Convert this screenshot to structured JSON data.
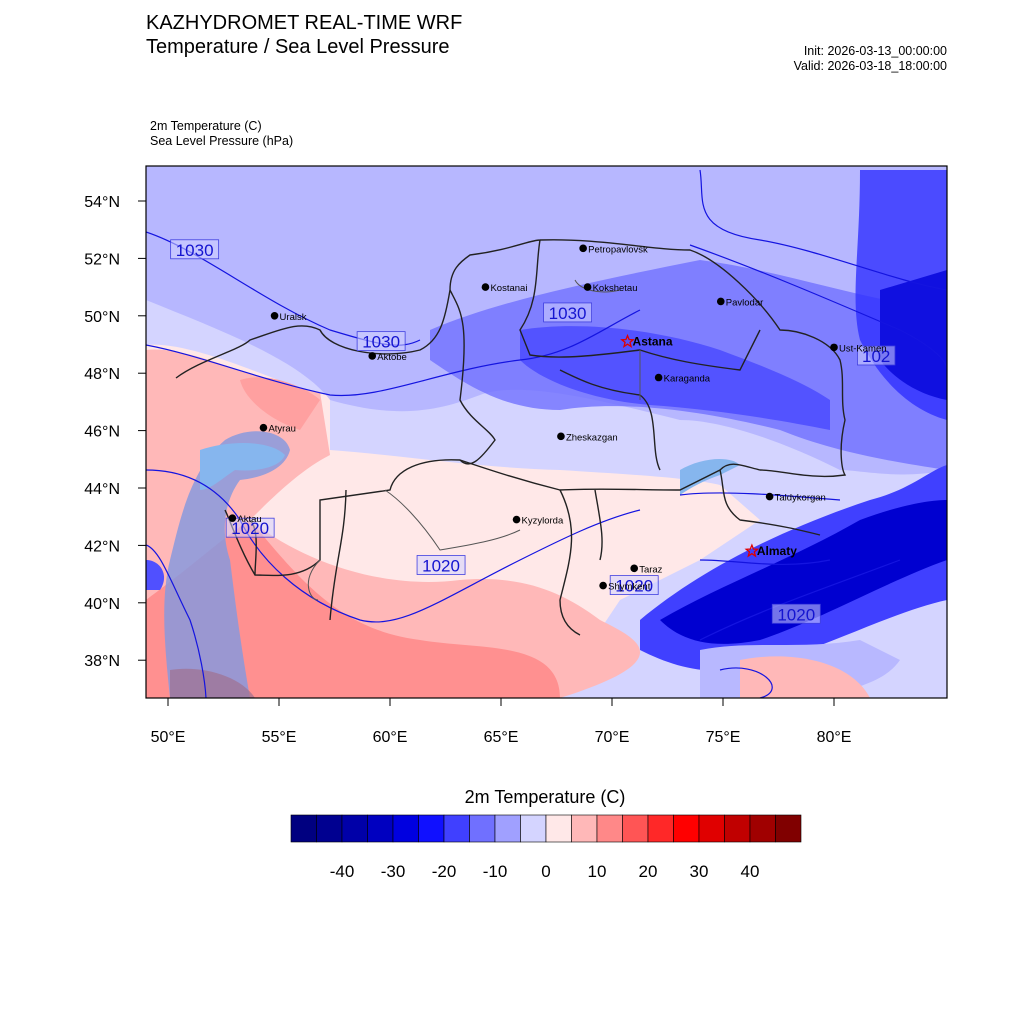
{
  "header": {
    "title": "KAZHYDROMET REAL-TIME WRF",
    "subtitle": "Temperature / Sea Level Pressure",
    "init": "Init: 2026-03-13_00:00:00",
    "valid": "Valid: 2026-03-18_18:00:00",
    "field1": "2m Temperature   (C)",
    "field2": "Sea Level Pressure   (hPa)"
  },
  "map": {
    "lat_labels": [
      "54°N",
      "52°N",
      "50°N",
      "48°N",
      "46°N",
      "44°N",
      "42°N",
      "40°N",
      "38°N"
    ],
    "lon_labels": [
      "50°E",
      "55°E",
      "60°E",
      "65°E",
      "70°E",
      "75°E",
      "80°E"
    ],
    "cities": [
      {
        "name": "Petropavlovsk",
        "lon": 68.7,
        "lat": 52.35,
        "capital": false
      },
      {
        "name": "Kostanai",
        "lon": 64.3,
        "lat": 51.0,
        "capital": false
      },
      {
        "name": "Kokshetau",
        "lon": 68.9,
        "lat": 51.0,
        "capital": false
      },
      {
        "name": "Uralsk",
        "lon": 54.8,
        "lat": 50.0,
        "capital": false
      },
      {
        "name": "Pavlodar",
        "lon": 74.9,
        "lat": 50.5,
        "capital": false
      },
      {
        "name": "Astana",
        "lon": 70.7,
        "lat": 49.1,
        "capital": true
      },
      {
        "name": "Aktobe",
        "lon": 59.2,
        "lat": 48.6,
        "capital": false
      },
      {
        "name": "Ust-Kamen",
        "lon": 80.0,
        "lat": 48.9,
        "capital": false
      },
      {
        "name": "Karaganda",
        "lon": 72.1,
        "lat": 47.85,
        "capital": false
      },
      {
        "name": "Atyrau",
        "lon": 54.3,
        "lat": 46.1,
        "capital": false
      },
      {
        "name": "Zheskazgan",
        "lon": 67.7,
        "lat": 45.8,
        "capital": false
      },
      {
        "name": "Taldykorgan",
        "lon": 77.1,
        "lat": 43.7,
        "capital": false
      },
      {
        "name": "Aktau",
        "lon": 52.9,
        "lat": 42.95,
        "capital": false
      },
      {
        "name": "Kyzylorda",
        "lon": 65.7,
        "lat": 42.9,
        "capital": false
      },
      {
        "name": "Almaty",
        "lon": 76.3,
        "lat": 41.8,
        "capital": true
      },
      {
        "name": "Taraz",
        "lon": 71.0,
        "lat": 41.2,
        "capital": false
      },
      {
        "name": "Shymkent",
        "lon": 69.6,
        "lat": 40.6,
        "capital": false
      }
    ],
    "isobar_labels": [
      {
        "text": "1030",
        "lon": 51.2,
        "lat": 52.3
      },
      {
        "text": "1030",
        "lon": 59.6,
        "lat": 49.1
      },
      {
        "text": "1030",
        "lon": 68.0,
        "lat": 50.1
      },
      {
        "text": "1020",
        "lon": 53.7,
        "lat": 42.6
      },
      {
        "text": "1020",
        "lon": 62.3,
        "lat": 41.3
      },
      {
        "text": "1020",
        "lon": 71.0,
        "lat": 40.6
      },
      {
        "text": "1020",
        "lon": 78.3,
        "lat": 39.6
      },
      {
        "text": "102",
        "lon": 81.9,
        "lat": 48.6
      }
    ]
  },
  "colorbar": {
    "title": "2m Temperature  (C)",
    "tick_labels": [
      "-40",
      "-30",
      "-20",
      "-10",
      "0",
      "10",
      "20",
      "30",
      "40"
    ],
    "colors": [
      "#000080",
      "#000090",
      "#0000A8",
      "#0000C0",
      "#0000E0",
      "#1010FF",
      "#4040FF",
      "#7070FF",
      "#A0A0FF",
      "#D4D4FF",
      "#FFE8E8",
      "#FFB8B8",
      "#FF8888",
      "#FF5555",
      "#FF2828",
      "#FF0000",
      "#E00000",
      "#C00000",
      "#A00000",
      "#800000"
    ]
  }
}
